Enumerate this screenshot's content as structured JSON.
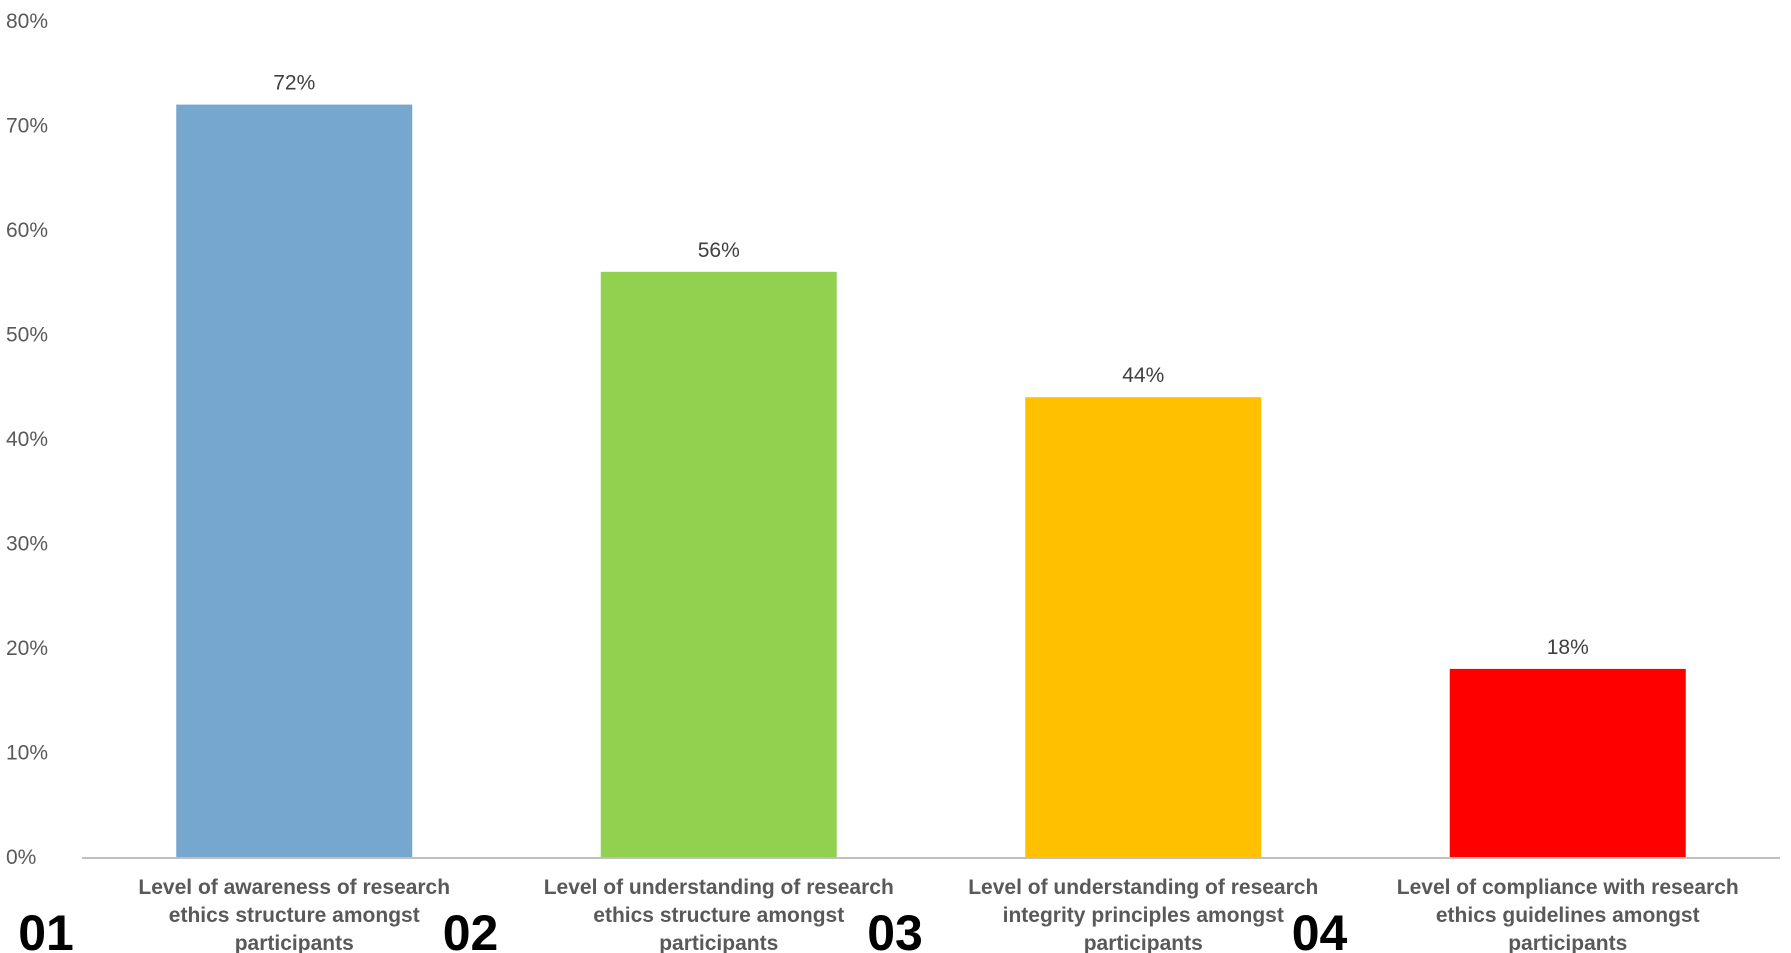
{
  "chart_data": {
    "type": "bar",
    "categories": [
      {
        "number": "01",
        "label_lines": [
          "Level of awareness of research",
          "ethics structure amongst",
          "participants"
        ]
      },
      {
        "number": "02",
        "label_lines": [
          "Level of understanding of research",
          "ethics structure amongst",
          "participants"
        ]
      },
      {
        "number": "03",
        "label_lines": [
          "Level of understanding of research",
          "integrity principles amongst",
          "participants"
        ]
      },
      {
        "number": "04",
        "label_lines": [
          "Level of compliance with research",
          "ethics guidelines amongst",
          "participants"
        ]
      }
    ],
    "values": [
      72,
      56,
      44,
      18
    ],
    "data_labels": [
      "72%",
      "56%",
      "44%",
      "18%"
    ],
    "colors": [
      "#76A7CF",
      "#92D050",
      "#FFC000",
      "#FF0000"
    ],
    "ylim": [
      0,
      80
    ],
    "y_ticks": [
      0,
      10,
      20,
      30,
      40,
      50,
      60,
      70,
      80
    ],
    "y_tick_labels": [
      "0%",
      "10%",
      "20%",
      "30%",
      "40%",
      "50%",
      "60%",
      "70%",
      "80%"
    ],
    "grid": false,
    "axis_color": "#BFBFBF",
    "title": "",
    "xlabel": "",
    "ylabel": ""
  }
}
